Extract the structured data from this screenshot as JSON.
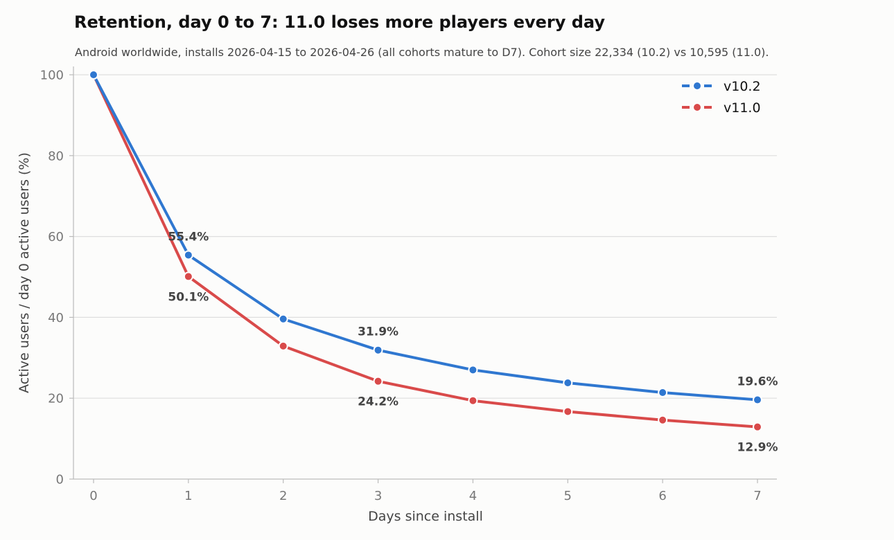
{
  "chart_data": {
    "type": "line",
    "title": "Retention, day 0 to 7: 11.0 loses more players every day",
    "subtitle": "Android worldwide, installs 2026-04-15 to 2026-04-26 (all cohorts mature to D7). Cohort size 22,334 (10.2) vs 10,595 (11.0).",
    "xlabel": "Days since install",
    "ylabel": "Active users / day 0 active users (%)",
    "x": [
      0,
      1,
      2,
      3,
      4,
      5,
      6,
      7
    ],
    "xlim": [
      0,
      7
    ],
    "ylim": [
      0,
      100
    ],
    "x_ticks": [
      "0",
      "1",
      "2",
      "3",
      "4",
      "5",
      "6",
      "7"
    ],
    "y_ticks": [
      "0",
      "20",
      "40",
      "60",
      "80",
      "100"
    ],
    "grid": "horizontal",
    "legend_position": "top-right",
    "series": [
      {
        "name": "v10.2",
        "color": "#2f77d0",
        "values": [
          100,
          55.4,
          39.6,
          31.9,
          27.0,
          23.8,
          21.4,
          19.6
        ],
        "data_labels": [
          {
            "x": 1,
            "text": "55.4%",
            "placement": "above"
          },
          {
            "x": 3,
            "text": "31.9%",
            "placement": "above"
          },
          {
            "x": 7,
            "text": "19.6%",
            "placement": "above"
          }
        ]
      },
      {
        "name": "v11.0",
        "color": "#d94a4a",
        "values": [
          100,
          50.1,
          32.9,
          24.2,
          19.4,
          16.7,
          14.6,
          12.9
        ],
        "data_labels": [
          {
            "x": 1,
            "text": "50.1%",
            "placement": "below"
          },
          {
            "x": 3,
            "text": "24.2%",
            "placement": "below"
          },
          {
            "x": 7,
            "text": "12.9%",
            "placement": "below"
          }
        ]
      }
    ]
  }
}
